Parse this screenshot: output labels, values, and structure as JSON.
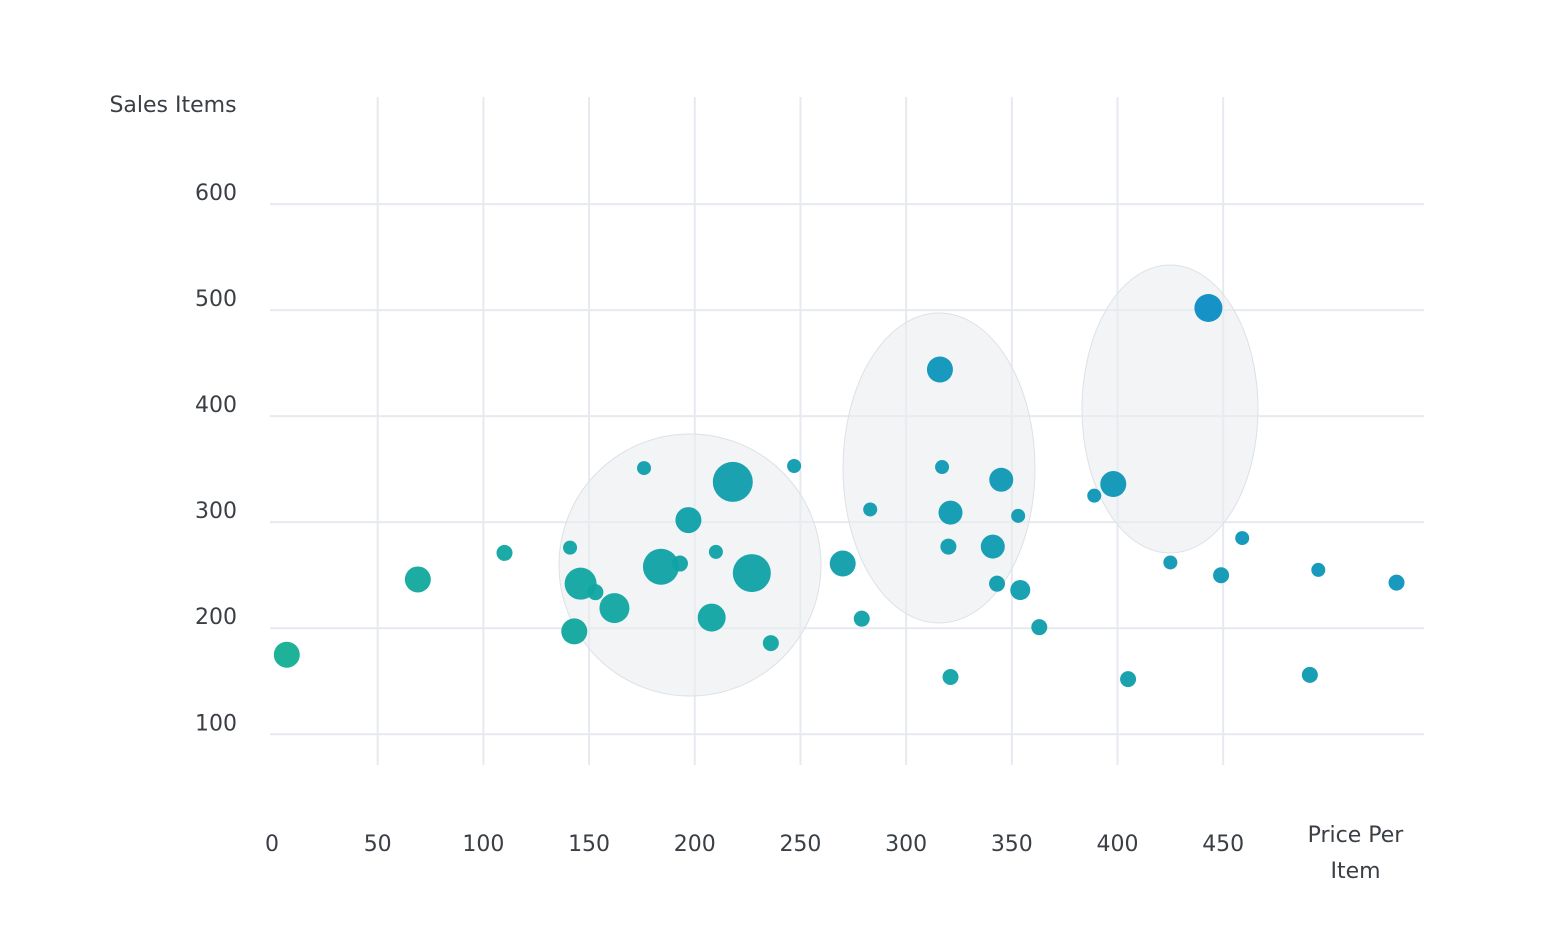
{
  "chart_data": {
    "type": "bubble",
    "x_label": "Price Per Item",
    "y_label": "Sales Items",
    "x": [
      7,
      69,
      110,
      141,
      143,
      146,
      153,
      162,
      176,
      184,
      193,
      197,
      208,
      210,
      218,
      227,
      236,
      247,
      270,
      279,
      283,
      316,
      317,
      320,
      321,
      321,
      341,
      343,
      345,
      353,
      354,
      363,
      389,
      398,
      405,
      425,
      443,
      449,
      459,
      491,
      495,
      532
    ],
    "values": [
      175,
      246,
      271,
      276,
      197,
      242,
      234,
      219,
      351,
      258,
      261,
      302,
      210,
      272,
      338,
      252,
      186,
      353,
      261,
      209,
      312,
      444,
      352,
      277,
      154,
      309,
      277,
      242,
      340,
      306,
      236,
      201,
      325,
      336,
      152,
      262,
      502,
      250,
      285,
      156,
      255,
      243
    ],
    "sizes": [
      13,
      13,
      8,
      7,
      13,
      16,
      8,
      15,
      7,
      18,
      8,
      13,
      14,
      7,
      20,
      19,
      8,
      7,
      13,
      8,
      7,
      13,
      7,
      8,
      8,
      12,
      12,
      8,
      12,
      7,
      10,
      8,
      7,
      13,
      8,
      7,
      14,
      8,
      7,
      8,
      7,
      8
    ],
    "color_scale": [
      "#13b48c",
      "#0a8cc4"
    ],
    "xlim": [
      0,
      545
    ],
    "ylim": [
      71,
      701
    ],
    "xticks": [
      0,
      50,
      100,
      150,
      200,
      250,
      300,
      350,
      400,
      450
    ],
    "yticks": [
      100,
      200,
      300,
      400,
      500,
      600
    ],
    "grid": true
  }
}
